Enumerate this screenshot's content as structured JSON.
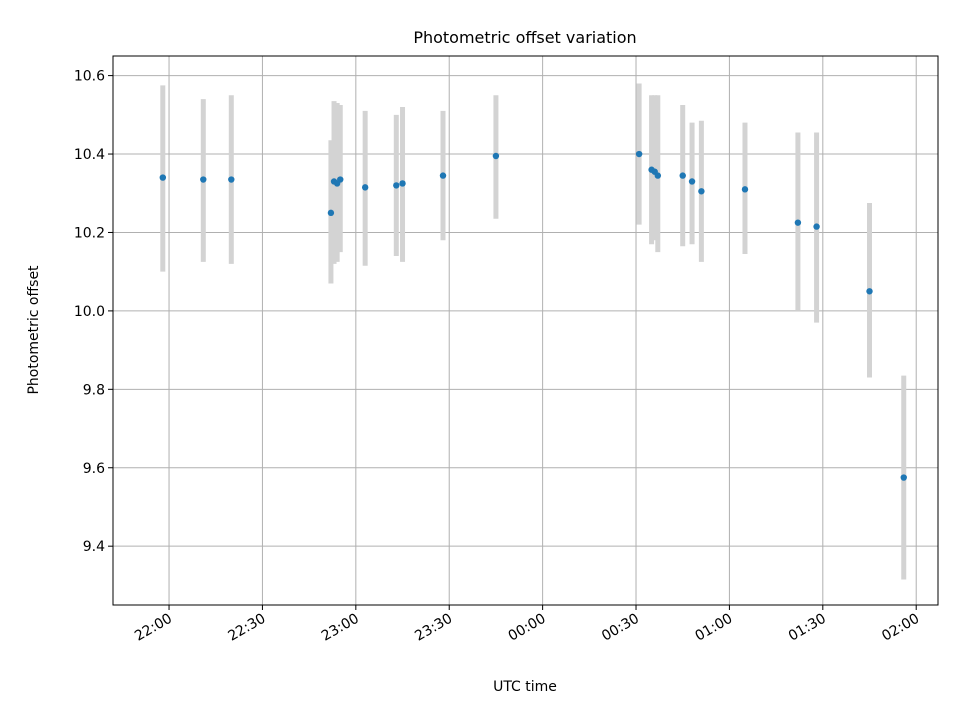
{
  "chart_data": {
    "type": "scatter",
    "title": "Photometric offset variation",
    "xlabel": "UTC time",
    "ylabel": "Photometric offset",
    "grid": true,
    "legend": "none",
    "x_axis_type": "time",
    "x_ticks": [
      "22:00",
      "22:30",
      "23:00",
      "23:30",
      "00:00",
      "00:30",
      "01:00",
      "01:30",
      "02:00"
    ],
    "xlim": [
      "21:42",
      "02:07"
    ],
    "y_ticks": [
      9.4,
      9.6,
      9.8,
      10.0,
      10.2,
      10.4,
      10.6
    ],
    "ylim": [
      9.25,
      10.65
    ],
    "colors": {
      "point": "#1f77b4",
      "errorbar": "#d3d3d3",
      "grid": "#b0b0b0"
    },
    "points": [
      {
        "x": "21:58",
        "y": 10.34,
        "yerr_low": 10.1,
        "yerr_high": 10.575
      },
      {
        "x": "22:11",
        "y": 10.335,
        "yerr_low": 10.125,
        "yerr_high": 10.54
      },
      {
        "x": "22:20",
        "y": 10.335,
        "yerr_low": 10.12,
        "yerr_high": 10.55
      },
      {
        "x": "22:52",
        "y": 10.25,
        "yerr_low": 10.07,
        "yerr_high": 10.435
      },
      {
        "x": "22:53",
        "y": 10.33,
        "yerr_low": 10.12,
        "yerr_high": 10.535
      },
      {
        "x": "22:54",
        "y": 10.325,
        "yerr_low": 10.125,
        "yerr_high": 10.53
      },
      {
        "x": "22:55",
        "y": 10.335,
        "yerr_low": 10.15,
        "yerr_high": 10.525
      },
      {
        "x": "23:03",
        "y": 10.315,
        "yerr_low": 10.115,
        "yerr_high": 10.51
      },
      {
        "x": "23:13",
        "y": 10.32,
        "yerr_low": 10.14,
        "yerr_high": 10.5
      },
      {
        "x": "23:15",
        "y": 10.325,
        "yerr_low": 10.125,
        "yerr_high": 10.52
      },
      {
        "x": "23:28",
        "y": 10.345,
        "yerr_low": 10.18,
        "yerr_high": 10.51
      },
      {
        "x": "23:45",
        "y": 10.395,
        "yerr_low": 10.235,
        "yerr_high": 10.55
      },
      {
        "x": "00:31",
        "y": 10.4,
        "yerr_low": 10.22,
        "yerr_high": 10.58
      },
      {
        "x": "00:35",
        "y": 10.36,
        "yerr_low": 10.17,
        "yerr_high": 10.55
      },
      {
        "x": "00:36",
        "y": 10.355,
        "yerr_low": 10.18,
        "yerr_high": 10.55
      },
      {
        "x": "00:37",
        "y": 10.345,
        "yerr_low": 10.15,
        "yerr_high": 10.55
      },
      {
        "x": "00:45",
        "y": 10.345,
        "yerr_low": 10.165,
        "yerr_high": 10.525
      },
      {
        "x": "00:48",
        "y": 10.33,
        "yerr_low": 10.17,
        "yerr_high": 10.48
      },
      {
        "x": "00:51",
        "y": 10.305,
        "yerr_low": 10.125,
        "yerr_high": 10.485
      },
      {
        "x": "01:05",
        "y": 10.31,
        "yerr_low": 10.145,
        "yerr_high": 10.48
      },
      {
        "x": "01:22",
        "y": 10.225,
        "yerr_low": 10.0,
        "yerr_high": 10.455
      },
      {
        "x": "01:28",
        "y": 10.215,
        "yerr_low": 9.97,
        "yerr_high": 10.455
      },
      {
        "x": "01:45",
        "y": 10.05,
        "yerr_low": 9.83,
        "yerr_high": 10.275
      },
      {
        "x": "01:56",
        "y": 9.575,
        "yerr_low": 9.315,
        "yerr_high": 9.835
      }
    ]
  }
}
